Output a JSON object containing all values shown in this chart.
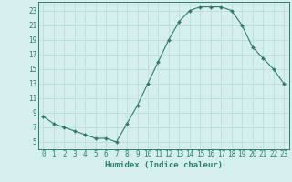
{
  "x": [
    0,
    1,
    2,
    3,
    4,
    5,
    6,
    7,
    8,
    9,
    10,
    11,
    12,
    13,
    14,
    15,
    16,
    17,
    18,
    19,
    20,
    21,
    22,
    23
  ],
  "y": [
    8.5,
    7.5,
    7.0,
    6.5,
    6.0,
    5.5,
    5.5,
    5.0,
    7.5,
    10.0,
    13.0,
    16.0,
    19.0,
    21.5,
    23.0,
    23.5,
    23.5,
    23.5,
    23.0,
    21.0,
    18.0,
    16.5,
    15.0,
    13.0
  ],
  "xlabel": "Humidex (Indice chaleur)",
  "line_color": "#2d7d6e",
  "marker_color": "#2d7d6e",
  "bg_color": "#d5efee",
  "grid_color": "#bbd9d8",
  "ylim": [
    4.0,
    24.2
  ],
  "xlim": [
    -0.5,
    23.5
  ],
  "yticks": [
    5,
    7,
    9,
    11,
    13,
    15,
    17,
    19,
    21,
    23
  ],
  "xticks": [
    0,
    1,
    2,
    3,
    4,
    5,
    6,
    7,
    8,
    9,
    10,
    11,
    12,
    13,
    14,
    15,
    16,
    17,
    18,
    19,
    20,
    21,
    22,
    23
  ],
  "ytick_labels": [
    "5",
    "7",
    "9",
    "11",
    "13",
    "15",
    "17",
    "19",
    "21",
    "23"
  ],
  "xtick_labels": [
    "0",
    "1",
    "2",
    "3",
    "4",
    "5",
    "6",
    "7",
    "8",
    "9",
    "10",
    "11",
    "12",
    "13",
    "14",
    "15",
    "16",
    "17",
    "18",
    "19",
    "20",
    "21",
    "22",
    "23"
  ],
  "tick_fontsize": 5.5,
  "xlabel_fontsize": 6.5
}
